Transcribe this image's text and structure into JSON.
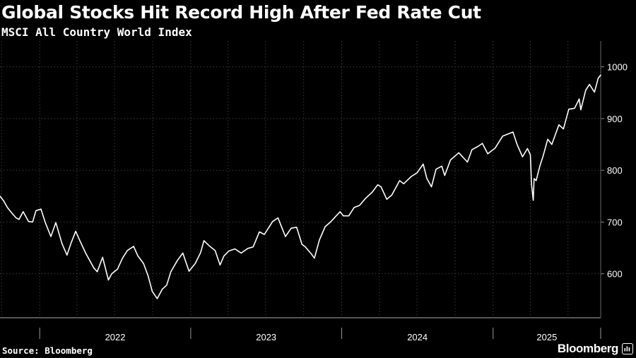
{
  "title": "Global Stocks Hit Record High After Fed Rate Cut",
  "subtitle": "MSCI All Country World Index",
  "source": "Source: Bloomberg",
  "brand": "Bloomberg",
  "colors": {
    "background": "#000000",
    "line": "#ffffff",
    "grid": "#3c3c3c"
  },
  "chart_data": {
    "type": "line",
    "title": "Global Stocks Hit Record High After Fed Rate Cut",
    "subtitle": "MSCI All Country World Index",
    "xlabel": "",
    "ylabel": "",
    "xlim": [
      "2021-09-27",
      "2025-09-18"
    ],
    "ylim": [
      515,
      1050
    ],
    "yticks": [
      600,
      700,
      800,
      900,
      1000
    ],
    "ytick_labels": [
      "600",
      "700",
      "800",
      "900",
      "1000"
    ],
    "xticks": [
      "2022",
      "2023",
      "2024",
      "2025"
    ],
    "grid": true,
    "legend": "none",
    "series": [
      {
        "values": [
          [
            "2021-09-27",
            750
          ],
          [
            "2021-10-05",
            742
          ],
          [
            "2021-10-15",
            728
          ],
          [
            "2021-10-25",
            718
          ],
          [
            "2021-11-05",
            708
          ],
          [
            "2021-11-12",
            705
          ],
          [
            "2021-11-22",
            720
          ],
          [
            "2021-12-05",
            701
          ],
          [
            "2021-12-15",
            700
          ],
          [
            "2021-12-23",
            722
          ],
          [
            "2022-01-04",
            725
          ],
          [
            "2022-01-14",
            700
          ],
          [
            "2022-01-28",
            672
          ],
          [
            "2022-02-09",
            699
          ],
          [
            "2022-02-24",
            658
          ],
          [
            "2022-03-08",
            636
          ],
          [
            "2022-03-18",
            660
          ],
          [
            "2022-03-29",
            682
          ],
          [
            "2022-04-08",
            664
          ],
          [
            "2022-04-22",
            640
          ],
          [
            "2022-05-12",
            611
          ],
          [
            "2022-05-20",
            604
          ],
          [
            "2022-06-02",
            632
          ],
          [
            "2022-06-16",
            588
          ],
          [
            "2022-06-24",
            600
          ],
          [
            "2022-07-08",
            609
          ],
          [
            "2022-07-20",
            630
          ],
          [
            "2022-08-01",
            645
          ],
          [
            "2022-08-16",
            653
          ],
          [
            "2022-08-26",
            635
          ],
          [
            "2022-09-09",
            620
          ],
          [
            "2022-09-20",
            596
          ],
          [
            "2022-09-30",
            566
          ],
          [
            "2022-10-12",
            552
          ],
          [
            "2022-10-24",
            570
          ],
          [
            "2022-11-04",
            578
          ],
          [
            "2022-11-14",
            604
          ],
          [
            "2022-11-30",
            626
          ],
          [
            "2022-12-13",
            640
          ],
          [
            "2022-12-28",
            605
          ],
          [
            "2023-01-12",
            620
          ],
          [
            "2023-01-25",
            641
          ],
          [
            "2023-02-02",
            664
          ],
          [
            "2023-02-15",
            654
          ],
          [
            "2023-03-01",
            645
          ],
          [
            "2023-03-13",
            617
          ],
          [
            "2023-03-22",
            634
          ],
          [
            "2023-04-03",
            644
          ],
          [
            "2023-04-18",
            648
          ],
          [
            "2023-05-03",
            640
          ],
          [
            "2023-05-19",
            649
          ],
          [
            "2023-06-01",
            652
          ],
          [
            "2023-06-16",
            681
          ],
          [
            "2023-06-28",
            676
          ],
          [
            "2023-07-18",
            701
          ],
          [
            "2023-07-31",
            708
          ],
          [
            "2023-08-10",
            688
          ],
          [
            "2023-08-18",
            672
          ],
          [
            "2023-09-01",
            688
          ],
          [
            "2023-09-14",
            690
          ],
          [
            "2023-09-27",
            657
          ],
          [
            "2023-10-05",
            652
          ],
          [
            "2023-10-20",
            638
          ],
          [
            "2023-10-27",
            630
          ],
          [
            "2023-11-08",
            665
          ],
          [
            "2023-11-22",
            691
          ],
          [
            "2023-12-05",
            700
          ],
          [
            "2023-12-28",
            720
          ],
          [
            "2024-01-05",
            712
          ],
          [
            "2024-01-18",
            712
          ],
          [
            "2024-01-31",
            728
          ],
          [
            "2024-02-13",
            732
          ],
          [
            "2024-02-28",
            746
          ],
          [
            "2024-03-15",
            758
          ],
          [
            "2024-03-28",
            772
          ],
          [
            "2024-04-05",
            768
          ],
          [
            "2024-04-19",
            744
          ],
          [
            "2024-05-01",
            752
          ],
          [
            "2024-05-20",
            780
          ],
          [
            "2024-05-30",
            774
          ],
          [
            "2024-06-17",
            788
          ],
          [
            "2024-07-01",
            795
          ],
          [
            "2024-07-16",
            812
          ],
          [
            "2024-07-25",
            784
          ],
          [
            "2024-08-05",
            768
          ],
          [
            "2024-08-16",
            802
          ],
          [
            "2024-08-30",
            808
          ],
          [
            "2024-09-06",
            790
          ],
          [
            "2024-09-20",
            820
          ],
          [
            "2024-10-10",
            834
          ],
          [
            "2024-10-31",
            816
          ],
          [
            "2024-11-11",
            840
          ],
          [
            "2024-11-25",
            846
          ],
          [
            "2024-12-06",
            852
          ],
          [
            "2024-12-19",
            832
          ],
          [
            "2025-01-06",
            843
          ],
          [
            "2025-01-24",
            866
          ],
          [
            "2025-02-18",
            874
          ],
          [
            "2025-02-28",
            850
          ],
          [
            "2025-03-13",
            826
          ],
          [
            "2025-03-25",
            842
          ],
          [
            "2025-04-01",
            830
          ],
          [
            "2025-04-04",
            772
          ],
          [
            "2025-04-08",
            742
          ],
          [
            "2025-04-10",
            784
          ],
          [
            "2025-04-15",
            780
          ],
          [
            "2025-04-24",
            808
          ],
          [
            "2025-05-02",
            828
          ],
          [
            "2025-05-13",
            860
          ],
          [
            "2025-05-23",
            850
          ],
          [
            "2025-06-09",
            888
          ],
          [
            "2025-06-20",
            880
          ],
          [
            "2025-07-03",
            918
          ],
          [
            "2025-07-17",
            920
          ],
          [
            "2025-07-28",
            938
          ],
          [
            "2025-08-01",
            917
          ],
          [
            "2025-08-13",
            955
          ],
          [
            "2025-08-22",
            966
          ],
          [
            "2025-09-03",
            951
          ],
          [
            "2025-09-12",
            978
          ],
          [
            "2025-09-18",
            984
          ]
        ]
      }
    ]
  }
}
